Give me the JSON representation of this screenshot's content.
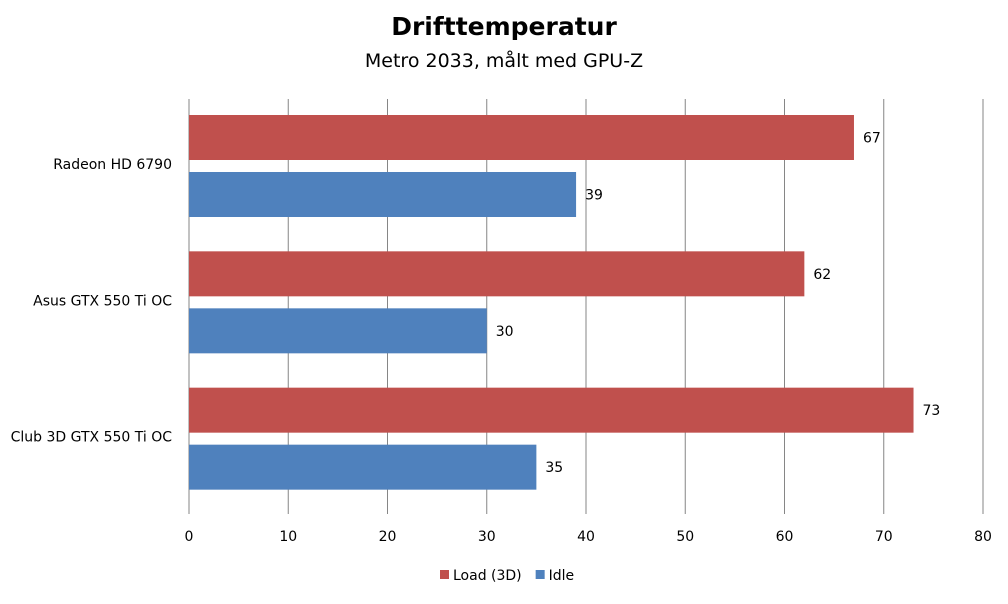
{
  "chart_data": {
    "type": "bar",
    "orientation": "horizontal",
    "title": "Drifttemperatur",
    "subtitle": "Metro 2033, målt med GPU-Z",
    "categories": [
      "Radeon HD 6790",
      "Asus GTX 550 Ti OC",
      "Club 3D GTX 550 Ti OC"
    ],
    "series": [
      {
        "name": "Load (3D)",
        "color": "#c0504d",
        "values": [
          67,
          62,
          73
        ]
      },
      {
        "name": "Idle",
        "color": "#4f81bd",
        "values": [
          39,
          30,
          35
        ]
      }
    ],
    "xlim": [
      0,
      80
    ],
    "xticks": [
      0,
      10,
      20,
      30,
      40,
      50,
      60,
      70,
      80
    ],
    "grid": "vertical",
    "legend_position": "bottom"
  }
}
